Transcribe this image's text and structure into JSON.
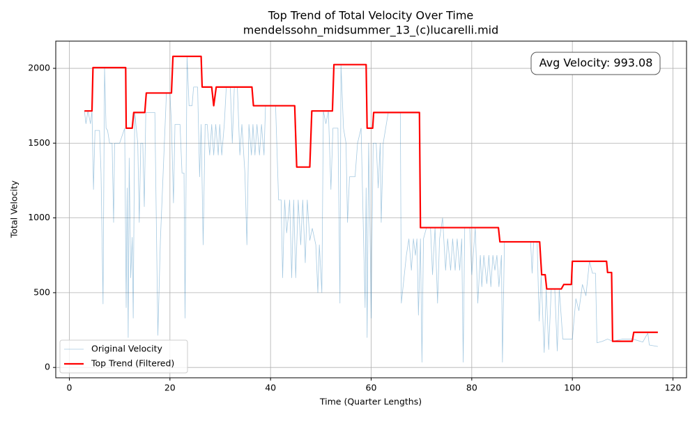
{
  "chart_data": {
    "type": "line",
    "title": "Top Trend of Total Velocity Over Time",
    "subtitle": "mendelssohn_midsummer_13_(c)lucarelli.mid",
    "x_label": "Time (Quarter Lengths)",
    "y_label": "Total Velocity",
    "annotation": "Avg Velocity: 993.08",
    "xlim": [
      -2.7,
      122.7
    ],
    "xticks": [
      0,
      20,
      40,
      60,
      80,
      100,
      120
    ],
    "ylim": [
      -69,
      2182
    ],
    "yticks": [
      0,
      500,
      1000,
      1500,
      2000
    ],
    "grid": true,
    "legend": "lower left",
    "series": [
      {
        "name": "Original Velocity",
        "color": "#1f77b4",
        "opacity": 0.4,
        "width": 0.8,
        "x": [
          3,
          3.3,
          3.7,
          4.2,
          4.5,
          4.8,
          5.1,
          6,
          6.3,
          6.7,
          7,
          7.3,
          7.6,
          8,
          8.5,
          8.8,
          9,
          10,
          11,
          11.3,
          11.5,
          11.7,
          11.9,
          12.2,
          12.5,
          12.7,
          13,
          13.6,
          13.9,
          14.2,
          14.6,
          14.9,
          15.2,
          17,
          17.6,
          18.1,
          19.3,
          20,
          20.3,
          20.7,
          21,
          22,
          22.4,
          22.8,
          23,
          23.4,
          23.8,
          24.4,
          24.7,
          25.5,
          25.9,
          26.2,
          26.6,
          27,
          27.4,
          27.9,
          28.3,
          28.7,
          29.1,
          29.6,
          29.9,
          30.3,
          30.8,
          31.2,
          32,
          32.4,
          32.8,
          33.4,
          33.9,
          34.3,
          34.9,
          35.3,
          35.7,
          36.2,
          36.5,
          36.9,
          37.3,
          37.8,
          38.2,
          38.7,
          39,
          41,
          41.6,
          42.1,
          42.4,
          42.8,
          43.2,
          43.5,
          43.8,
          44.2,
          44.6,
          45,
          45.5,
          46,
          46.4,
          46.9,
          47.3,
          47.8,
          48.3,
          49,
          49.4,
          49.7,
          50.2,
          50.5,
          51,
          51.5,
          52,
          52.4,
          53.4,
          53.8,
          54,
          54.5,
          55,
          55.3,
          55.7,
          56.8,
          57.3,
          58,
          58.8,
          59,
          59.2,
          59.5,
          59.8,
          60,
          60.4,
          61,
          61.4,
          61.8,
          62,
          62.4,
          63.4,
          65.8,
          66,
          67,
          67.5,
          68,
          68.4,
          68.8,
          69.1,
          69.4,
          69.8,
          70.1,
          70.4,
          71,
          71.8,
          72.2,
          72.7,
          73.2,
          73.6,
          74.2,
          74.8,
          75.2,
          75.8,
          76.2,
          76.7,
          77.1,
          77.6,
          78,
          78.3,
          78.6,
          79.6,
          80,
          80.7,
          81.2,
          81.7,
          82,
          82.4,
          83,
          83.4,
          83.8,
          84.2,
          84.6,
          85,
          85.4,
          85.9,
          86.1,
          86.5,
          88,
          90,
          91,
          91.7,
          92,
          92.3,
          93,
          93.4,
          93.8,
          94.4,
          94.8,
          95.3,
          95.8,
          96.5,
          97,
          97.4,
          98.1,
          99,
          100,
          100.7,
          101.3,
          102,
          102.7,
          103.4,
          104,
          104.6,
          104.9,
          106,
          107,
          108,
          110,
          112,
          114,
          115,
          115.3,
          117
        ],
        "values": [
          1715,
          1630,
          1715,
          1630,
          1715,
          1190,
          1585,
          1585,
          1300,
          425,
          2005,
          1600,
          1585,
          1500,
          1500,
          970,
          1500,
          1500,
          1600,
          400,
          1200,
          200,
          1400,
          600,
          870,
          330,
          1705,
          1500,
          970,
          1500,
          1500,
          1075,
          1705,
          1705,
          215,
          850,
          1835,
          1835,
          1625,
          1100,
          1625,
          1625,
          1300,
          1300,
          330,
          2080,
          1750,
          1750,
          1875,
          1875,
          1275,
          1625,
          820,
          1625,
          1625,
          1420,
          1625,
          1420,
          1625,
          1420,
          1625,
          1420,
          1625,
          1875,
          1875,
          1500,
          1875,
          1875,
          1420,
          1625,
          1300,
          820,
          1625,
          1420,
          1625,
          1420,
          1625,
          1420,
          1625,
          1420,
          1750,
          1750,
          1120,
          1120,
          600,
          1120,
          900,
          1000,
          1120,
          600,
          1120,
          600,
          1120,
          820,
          1120,
          700,
          1120,
          850,
          930,
          820,
          500,
          820,
          500,
          1715,
          1630,
          1715,
          1190,
          1600,
          1600,
          430,
          2025,
          1600,
          1500,
          970,
          1275,
          1275,
          1500,
          1600,
          400,
          1200,
          200,
          1500,
          860,
          330,
          1500,
          1500,
          1200,
          1500,
          970,
          1500,
          1705,
          1705,
          430,
          750,
          860,
          650,
          860,
          750,
          860,
          350,
          860,
          35,
          860,
          935,
          935,
          620,
          935,
          430,
          860,
          1000,
          650,
          860,
          650,
          860,
          650,
          860,
          650,
          860,
          35,
          935,
          935,
          620,
          935,
          430,
          750,
          540,
          750,
          560,
          750,
          540,
          750,
          650,
          750,
          540,
          750,
          35,
          840,
          840,
          840,
          840,
          840,
          630,
          840,
          840,
          310,
          620,
          100,
          525,
          120,
          525,
          525,
          110,
          525,
          190,
          190,
          190,
          460,
          380,
          555,
          480,
          710,
          630,
          630,
          165,
          175,
          190,
          175,
          190,
          190,
          170,
          230,
          150,
          140
        ]
      },
      {
        "name": "Top Trend (Filtered)",
        "color": "#ff0000",
        "opacity": 1,
        "width": 2.2,
        "x": [
          3,
          4.5,
          4.7,
          11.2,
          11.3,
          12.5,
          12.8,
          15,
          15.3,
          20.3,
          20.6,
          26.2,
          26.4,
          28.3,
          28.7,
          29.2,
          36.3,
          36.6,
          44.8,
          45.2,
          47.8,
          48.2,
          52.3,
          52.6,
          59,
          59.2,
          60.3,
          60.5,
          69.6,
          69.8,
          85.3,
          85.6,
          93.5,
          93.9,
          94.6,
          94.9,
          97.8,
          98.3,
          99.8,
          100,
          106.8,
          107,
          107.8,
          108,
          111.9,
          112.2,
          117
        ],
        "values": [
          1715,
          1715,
          2005,
          2005,
          1600,
          1600,
          1705,
          1705,
          1835,
          1835,
          2080,
          2080,
          1875,
          1875,
          1750,
          1875,
          1875,
          1750,
          1750,
          1340,
          1340,
          1715,
          1715,
          2025,
          2025,
          1600,
          1600,
          1705,
          1705,
          935,
          935,
          840,
          840,
          620,
          620,
          525,
          525,
          555,
          555,
          710,
          710,
          635,
          635,
          175,
          175,
          235,
          235
        ]
      }
    ]
  }
}
